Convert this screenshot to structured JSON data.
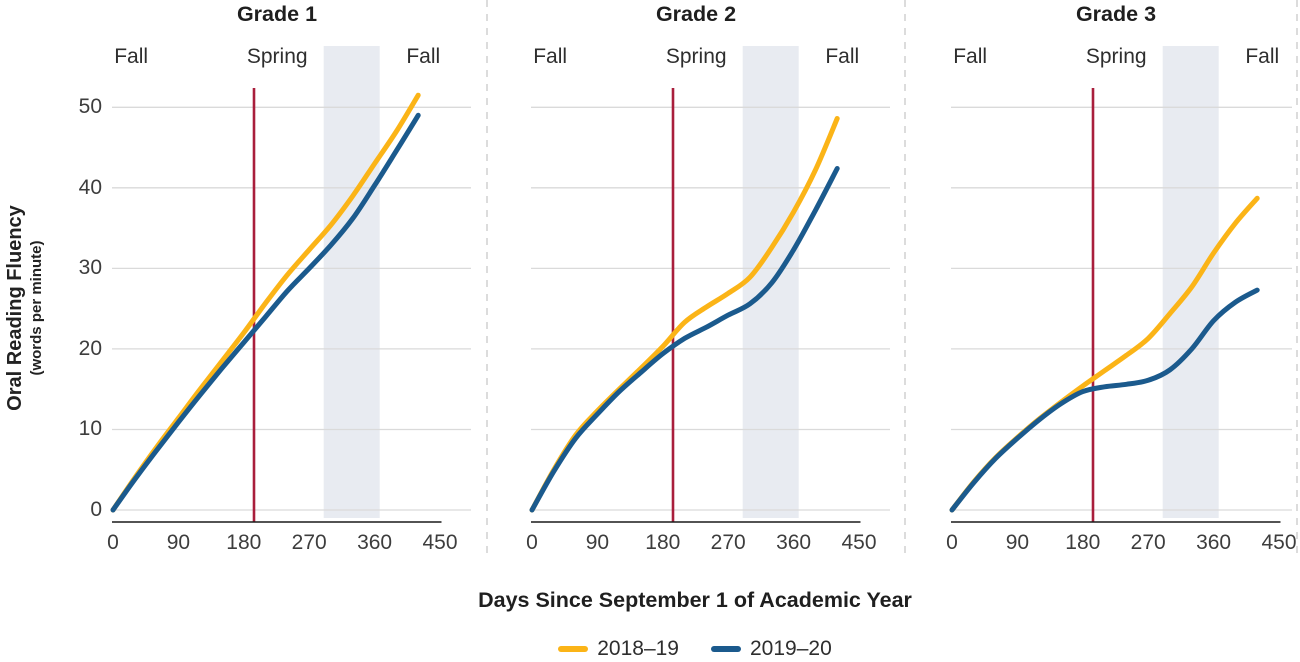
{
  "figure": {
    "ylabel": "Oral Reading Fluency",
    "ylabel_sub": "(words per minute)",
    "xlabel": "Days Since September 1 of Academic Year",
    "legend": [
      {
        "label": "2018–19",
        "color": "#FBB417"
      },
      {
        "label": "2019–20",
        "color": "#1B5A8D"
      }
    ]
  },
  "colors": {
    "series_2018_19": "#FBB417",
    "series_2019_20": "#1B5A8D",
    "event_line": "#A91E3C",
    "band": "#E8EBF1",
    "grid": "#DADADA",
    "axis": "#1A1A1A",
    "separator": "#C9C9C9",
    "text": "#282828"
  },
  "chart_data": [
    {
      "type": "line",
      "title": "Grade 1",
      "xlim": [
        0,
        450
      ],
      "ylim": [
        0,
        50
      ],
      "x_ticks": [
        0,
        90,
        180,
        270,
        360,
        450
      ],
      "y_ticks": [
        0,
        10,
        20,
        30,
        40,
        50
      ],
      "season_labels": [
        {
          "text": "Fall",
          "day": 25
        },
        {
          "text": "Spring",
          "day": 226
        },
        {
          "text": "Fall",
          "day": 427
        }
      ],
      "event_line_day": 194,
      "highlight_band": [
        290,
        367
      ],
      "x": [
        0,
        30,
        60,
        90,
        120,
        150,
        180,
        210,
        240,
        270,
        300,
        330,
        360,
        390,
        420
      ],
      "series": [
        {
          "name": "2018–19",
          "color": "#FBB417",
          "values": [
            0,
            4.0,
            7.8,
            11.4,
            15.0,
            18.5,
            22.0,
            25.7,
            29.2,
            32.3,
            35.4,
            39.0,
            43.0,
            47.0,
            51.5
          ]
        },
        {
          "name": "2019–20",
          "color": "#1B5A8D",
          "values": [
            0,
            3.8,
            7.4,
            10.9,
            14.3,
            17.6,
            20.8,
            24.0,
            27.2,
            30.0,
            32.9,
            36.2,
            40.3,
            44.6,
            49.0
          ]
        }
      ]
    },
    {
      "type": "line",
      "title": "Grade 2",
      "xlim": [
        0,
        450
      ],
      "ylim": [
        0,
        50
      ],
      "x_ticks": [
        0,
        90,
        180,
        270,
        360,
        450
      ],
      "y_ticks": [
        0,
        10,
        20,
        30,
        40,
        50
      ],
      "season_labels": [
        {
          "text": "Fall",
          "day": 25
        },
        {
          "text": "Spring",
          "day": 226
        },
        {
          "text": "Fall",
          "day": 427
        }
      ],
      "event_line_day": 194,
      "highlight_band": [
        290,
        367
      ],
      "x": [
        0,
        30,
        60,
        90,
        120,
        150,
        180,
        210,
        240,
        270,
        300,
        330,
        360,
        390,
        420
      ],
      "series": [
        {
          "name": "2018–19",
          "color": "#FBB417",
          "values": [
            0,
            5.0,
            9.3,
            12.3,
            15.0,
            17.6,
            20.3,
            23.3,
            25.2,
            26.9,
            28.9,
            32.6,
            37.0,
            42.2,
            48.6
          ]
        },
        {
          "name": "2019–20",
          "color": "#1B5A8D",
          "values": [
            0,
            4.8,
            8.9,
            11.9,
            14.7,
            17.1,
            19.4,
            21.3,
            22.7,
            24.2,
            25.6,
            28.2,
            32.3,
            37.2,
            42.4
          ]
        }
      ]
    },
    {
      "type": "line",
      "title": "Grade 3",
      "xlim": [
        0,
        450
      ],
      "ylim": [
        0,
        50
      ],
      "x_ticks": [
        0,
        90,
        180,
        270,
        360,
        450
      ],
      "y_ticks": [
        0,
        10,
        20,
        30,
        40,
        50
      ],
      "season_labels": [
        {
          "text": "Fall",
          "day": 25
        },
        {
          "text": "Spring",
          "day": 226
        },
        {
          "text": "Fall",
          "day": 427
        }
      ],
      "event_line_day": 194,
      "highlight_band": [
        290,
        367
      ],
      "x": [
        0,
        30,
        60,
        90,
        120,
        150,
        180,
        210,
        240,
        270,
        300,
        330,
        360,
        390,
        420
      ],
      "series": [
        {
          "name": "2018–19",
          "color": "#FBB417",
          "values": [
            0,
            3.5,
            6.5,
            9.0,
            11.3,
            13.4,
            15.4,
            17.3,
            19.2,
            21.3,
            24.4,
            27.7,
            31.9,
            35.6,
            38.7
          ]
        },
        {
          "name": "2019–20",
          "color": "#1B5A8D",
          "values": [
            0,
            3.4,
            6.4,
            8.9,
            11.2,
            13.2,
            14.7,
            15.3,
            15.6,
            16.1,
            17.4,
            20.0,
            23.5,
            25.8,
            27.3
          ]
        }
      ]
    }
  ]
}
